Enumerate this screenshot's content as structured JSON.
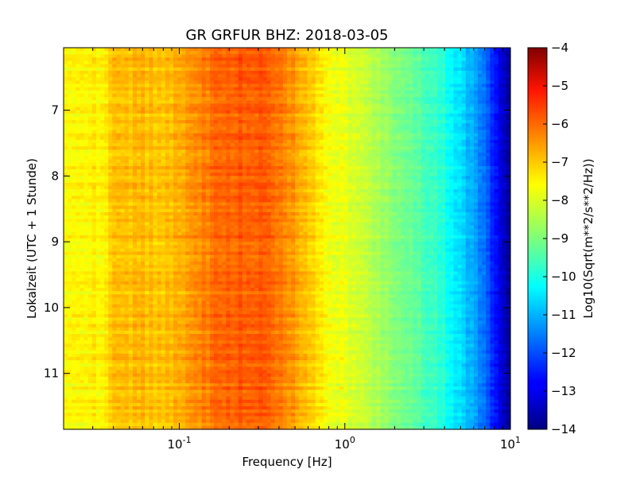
{
  "chart_data": {
    "type": "heatmap",
    "title": "GR GRFUR BHZ: 2018-03-05",
    "xlabel": "Frequency [Hz]",
    "ylabel": "Lokalzeit (UTC + 1 Stunde)",
    "x_scale": "log",
    "xlim": [
      0.02,
      10
    ],
    "x_ticks": [
      {
        "value": 0.1,
        "base": "10",
        "exp": "-1"
      },
      {
        "value": 1,
        "base": "10",
        "exp": "0"
      },
      {
        "value": 10,
        "base": "10",
        "exp": "1"
      }
    ],
    "ylim": [
      6.05,
      11.85
    ],
    "y_inverted": true,
    "y_ticks": [
      7,
      8,
      9,
      10,
      11
    ],
    "colorbar": {
      "label": "Log10(Sqrt(m**2/s**2/Hz))",
      "range": [
        -14,
        -4
      ],
      "ticks": [
        -4,
        -5,
        -6,
        -7,
        -8,
        -9,
        -10,
        -11,
        -12,
        -13,
        -14
      ],
      "colormap": "jet"
    },
    "spectrum_profile": [
      {
        "frequency": 0.02,
        "value": -7.8
      },
      {
        "frequency": 0.035,
        "value": -7.6
      },
      {
        "frequency": 0.04,
        "value": -7.2
      },
      {
        "frequency": 0.06,
        "value": -7.1
      },
      {
        "frequency": 0.08,
        "value": -7.2
      },
      {
        "frequency": 0.1,
        "value": -7.0
      },
      {
        "frequency": 0.13,
        "value": -6.6
      },
      {
        "frequency": 0.17,
        "value": -6.3
      },
      {
        "frequency": 0.22,
        "value": -6.15
      },
      {
        "frequency": 0.3,
        "value": -6.15
      },
      {
        "frequency": 0.4,
        "value": -6.35
      },
      {
        "frequency": 0.55,
        "value": -7.0
      },
      {
        "frequency": 0.7,
        "value": -7.6
      },
      {
        "frequency": 1.0,
        "value": -8.0
      },
      {
        "frequency": 1.5,
        "value": -8.5
      },
      {
        "frequency": 2.0,
        "value": -8.9
      },
      {
        "frequency": 3.0,
        "value": -9.5
      },
      {
        "frequency": 4.0,
        "value": -10.0
      },
      {
        "frequency": 5.0,
        "value": -10.6
      },
      {
        "frequency": 6.0,
        "value": -11.1
      },
      {
        "frequency": 7.0,
        "value": -11.7
      },
      {
        "frequency": 8.0,
        "value": -12.5
      },
      {
        "frequency": 9.0,
        "value": -13.3
      },
      {
        "frequency": 10.0,
        "value": -13.7
      }
    ]
  }
}
